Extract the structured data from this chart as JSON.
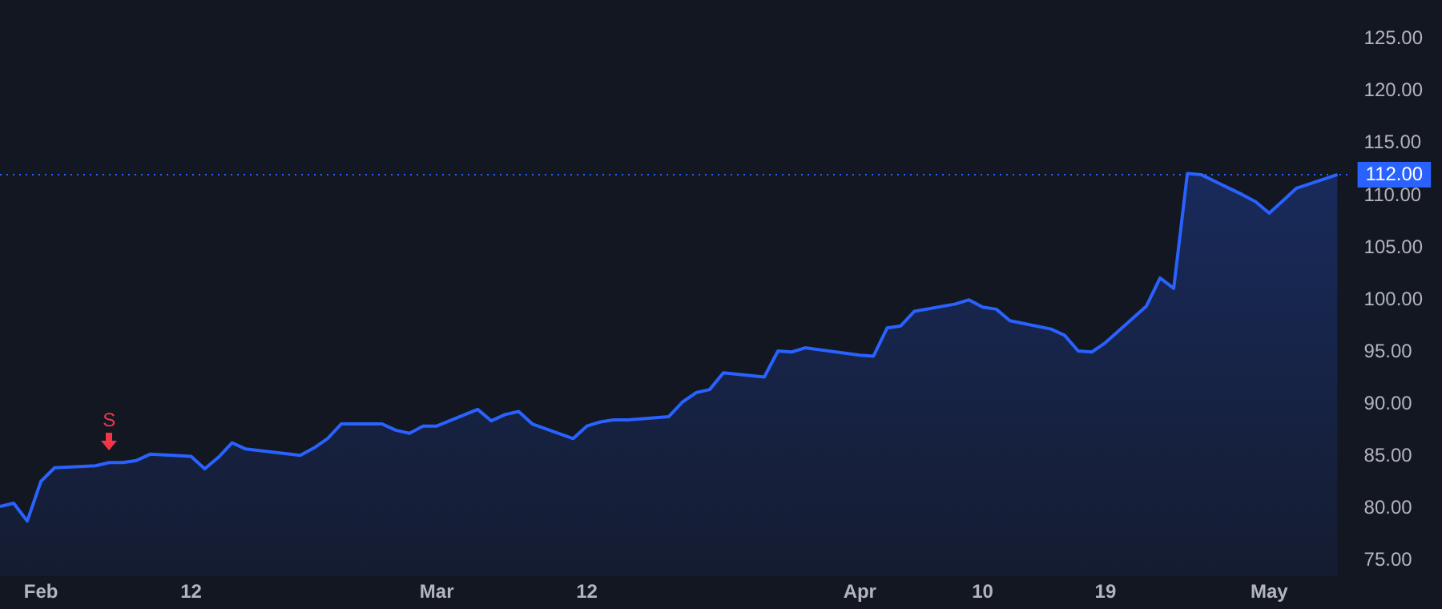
{
  "chart_data": {
    "type": "area",
    "x": [
      "--01-29",
      "--01-30",
      "--01-31",
      "--02-01",
      "--02-02",
      "--02-05",
      "--02-06",
      "--02-07",
      "--02-08",
      "--02-09",
      "--02-12",
      "--02-13",
      "--02-14",
      "--02-15",
      "--02-16",
      "--02-20",
      "--02-21",
      "--02-22",
      "--02-23",
      "--02-26",
      "--02-27",
      "--02-28",
      "--02-29",
      "--03-01",
      "--03-04",
      "--03-05",
      "--03-06",
      "--03-07",
      "--03-08",
      "--03-11",
      "--03-12",
      "--03-13",
      "--03-14",
      "--03-15",
      "--03-18",
      "--03-19",
      "--03-20",
      "--03-21",
      "--03-22",
      "--03-25",
      "--03-26",
      "--03-27",
      "--03-28",
      "--04-01",
      "--04-02",
      "--04-03",
      "--04-04",
      "--04-05",
      "--04-08",
      "--04-09",
      "--04-10",
      "--04-11",
      "--04-12",
      "--04-15",
      "--04-16",
      "--04-17",
      "--04-18",
      "--04-19",
      "--04-22",
      "--04-23",
      "--04-24",
      "--04-25",
      "--04-26",
      "--04-29",
      "--04-30",
      "--05-01",
      "--05-02",
      "--05-03",
      "--05-06"
    ],
    "series": [
      {
        "color": "#2962ff",
        "values": [
          80.2,
          80.5,
          78.8,
          82.6,
          83.9,
          84.1,
          84.4,
          84.4,
          84.6,
          85.2,
          85.0,
          83.8,
          84.9,
          86.3,
          85.7,
          85.1,
          85.8,
          86.7,
          88.1,
          88.1,
          87.5,
          87.2,
          87.9,
          87.9,
          89.5,
          88.4,
          89.0,
          89.3,
          88.1,
          86.7,
          87.9,
          88.3,
          88.5,
          88.5,
          88.8,
          90.2,
          91.1,
          91.4,
          93.0,
          92.6,
          95.1,
          95.0,
          95.4,
          94.7,
          94.6,
          97.3,
          97.5,
          98.9,
          99.6,
          100.0,
          99.3,
          99.1,
          98.0,
          97.2,
          96.6,
          95.1,
          95.0,
          95.9,
          99.4,
          102.1,
          101.1,
          112.1,
          112.0,
          110.1,
          109.4,
          108.3,
          109.5,
          110.7,
          112.0
        ]
      }
    ],
    "xlim": [
      "--01-29",
      "--05-07"
    ],
    "xticks": [
      {
        "value": "--02-01",
        "label": "Feb"
      },
      {
        "value": "--02-12",
        "label": "12"
      },
      {
        "value": "--03-01",
        "label": "Mar"
      },
      {
        "value": "--03-12",
        "label": "12"
      },
      {
        "value": "--04-01",
        "label": "Apr"
      },
      {
        "value": "--04-10",
        "label": "10"
      },
      {
        "value": "--04-19",
        "label": "19"
      },
      {
        "value": "--05-01",
        "label": "May"
      }
    ],
    "ylim": [
      73.5,
      126.4
    ],
    "yticks": [
      {
        "value": 75,
        "label": "75.00"
      },
      {
        "value": 80,
        "label": "80.00"
      },
      {
        "value": 85,
        "label": "85.00"
      },
      {
        "value": 90,
        "label": "90.00"
      },
      {
        "value": 95,
        "label": "95.00"
      },
      {
        "value": 100,
        "label": "100.00"
      },
      {
        "value": 105,
        "label": "105.00"
      },
      {
        "value": 110,
        "label": "110.00"
      },
      {
        "value": 115,
        "label": "115.00"
      },
      {
        "value": 120,
        "label": "120.00"
      },
      {
        "value": 125,
        "label": "125.00"
      }
    ],
    "ref_lines": [
      {
        "axis": "y",
        "value": 112,
        "label": "112.00",
        "color": "#2962ff",
        "line_style": "dotted"
      }
    ],
    "annotations": [
      {
        "text": "S",
        "x": "--02-06",
        "y": 84.4
      }
    ],
    "grid": true,
    "legend": false,
    "marker": "none",
    "line_style": "solid"
  }
}
